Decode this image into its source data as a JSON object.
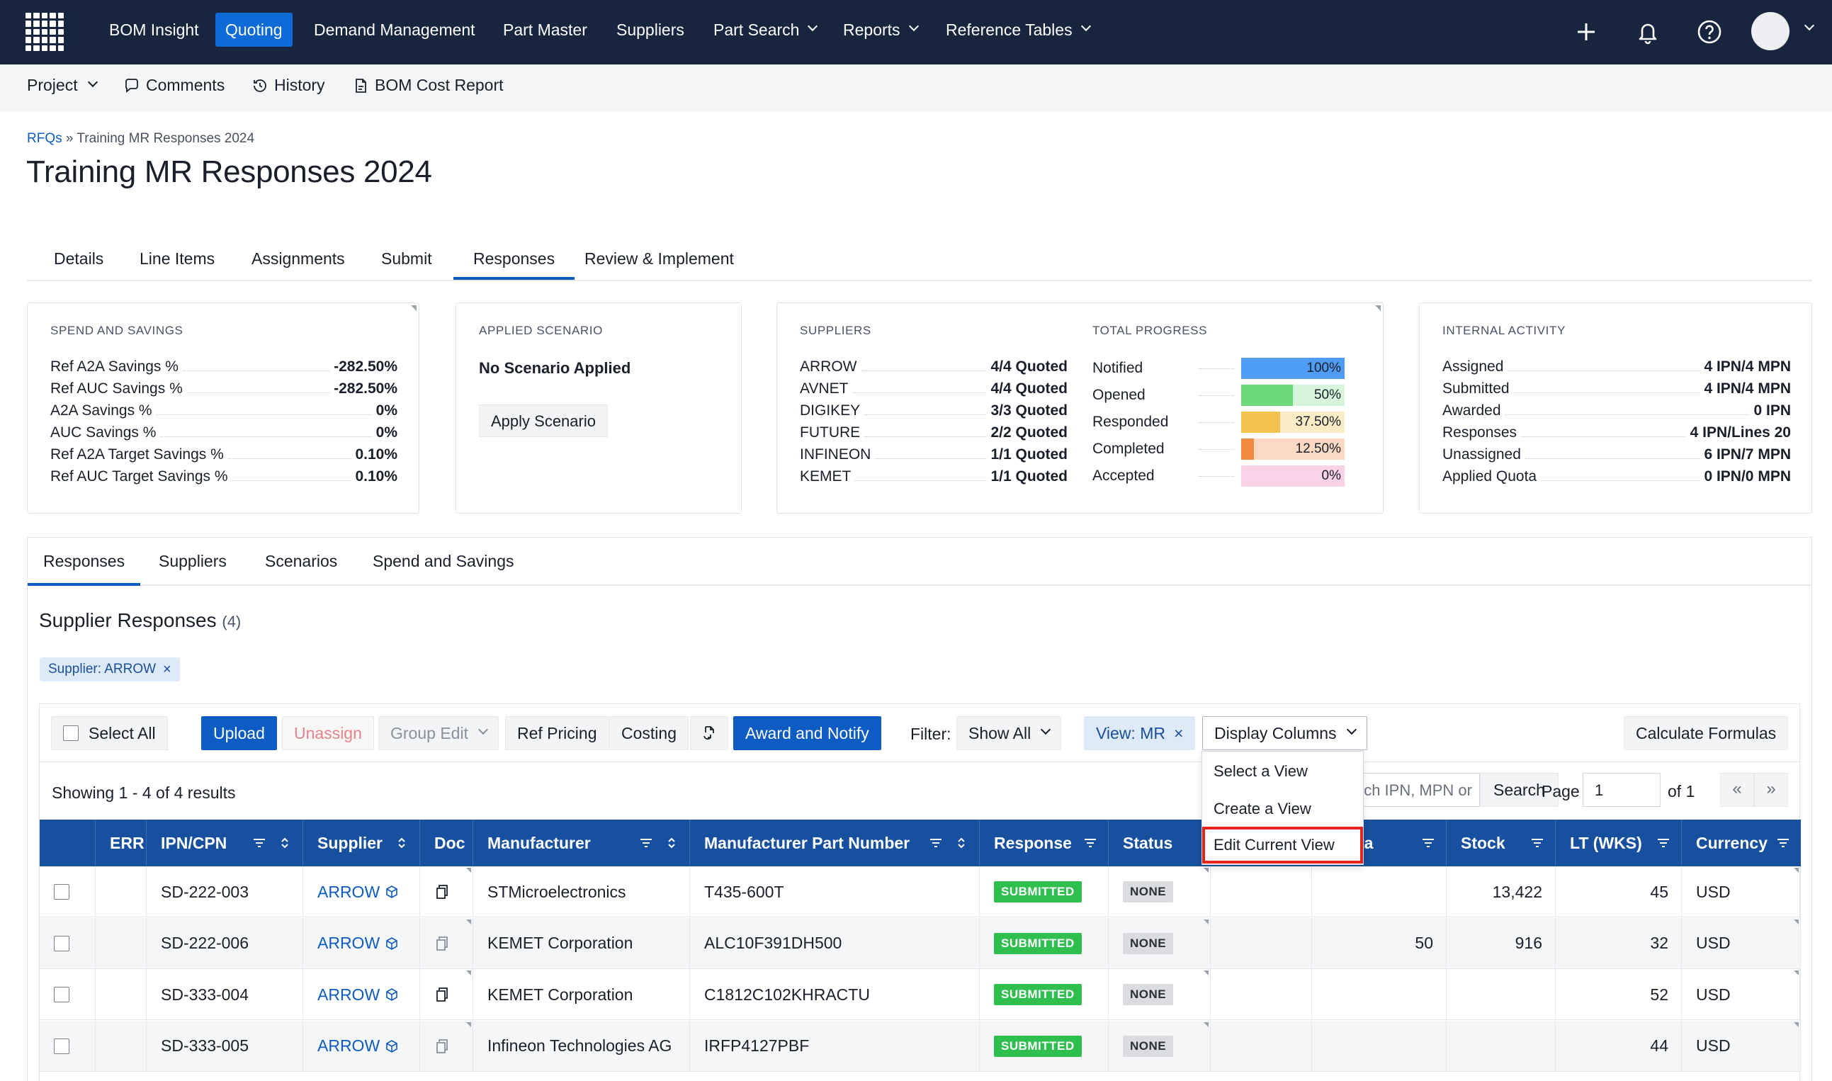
{
  "topnav": {
    "items": [
      {
        "label": "BOM Insight"
      },
      {
        "label": "Quoting"
      },
      {
        "label": "Demand Management"
      },
      {
        "label": "Part Master"
      },
      {
        "label": "Suppliers"
      },
      {
        "label": "Part Search"
      },
      {
        "label": "Reports"
      },
      {
        "label": "Reference Tables"
      }
    ],
    "icons": [
      "plus-icon",
      "bell-icon",
      "help-icon",
      "avatar"
    ]
  },
  "subbar": {
    "project": "Project",
    "comments": "Comments",
    "history": "History",
    "bom_cost_report": "BOM Cost Report"
  },
  "breadcrumb": {
    "root": "RFQs",
    "sep": "»",
    "current": "Training MR Responses 2024"
  },
  "page_title": "Training MR Responses 2024",
  "main_tabs": [
    "Details",
    "Line Items",
    "Assignments",
    "Submit",
    "Responses",
    "Review & Implement"
  ],
  "spend": {
    "heading": "SPEND AND SAVINGS",
    "rows": [
      {
        "k": "Ref A2A Savings %",
        "v": "-282.50%"
      },
      {
        "k": "Ref AUC Savings %",
        "v": "-282.50%"
      },
      {
        "k": "A2A Savings %",
        "v": "0%"
      },
      {
        "k": "AUC Savings %",
        "v": "0%"
      },
      {
        "k": "Ref A2A Target Savings %",
        "v": "0.10%"
      },
      {
        "k": "Ref AUC Target Savings %",
        "v": "0.10%"
      }
    ]
  },
  "scenario": {
    "heading": "APPLIED SCENARIO",
    "status": "No Scenario Applied",
    "button": "Apply Scenario"
  },
  "suppliers": {
    "heading": "SUPPLIERS",
    "rows": [
      {
        "k": "ARROW",
        "v": "4/4 Quoted"
      },
      {
        "k": "AVNET",
        "v": "4/4 Quoted"
      },
      {
        "k": "DIGIKEY",
        "v": "3/3 Quoted"
      },
      {
        "k": "FUTURE",
        "v": "2/2 Quoted"
      },
      {
        "k": "INFINEON",
        "v": "1/1 Quoted"
      },
      {
        "k": "KEMET",
        "v": "1/1 Quoted"
      }
    ]
  },
  "progress": {
    "heading": "TOTAL PROGRESS",
    "rows": [
      {
        "k": "Notified",
        "v": "100%",
        "fraction": 1.0,
        "color": "#4e9cf5",
        "bg": "#d3e6fc"
      },
      {
        "k": "Opened",
        "v": "50%",
        "fraction": 0.5,
        "color": "#6dd97c",
        "bg": "#d6f5da"
      },
      {
        "k": "Responded",
        "v": "37.50%",
        "fraction": 0.375,
        "color": "#f2c24f",
        "bg": "#fbecc6"
      },
      {
        "k": "Completed",
        "v": "12.50%",
        "fraction": 0.125,
        "color": "#f08a3e",
        "bg": "#fbd9c2"
      },
      {
        "k": "Accepted",
        "v": "0%",
        "fraction": 0.0,
        "color": "#f7a6cf",
        "bg": "#fbd3e8"
      }
    ]
  },
  "internal": {
    "heading": "INTERNAL ACTIVITY",
    "rows": [
      {
        "k": "Assigned",
        "v": "4 IPN/4 MPN"
      },
      {
        "k": "Submitted",
        "v": "4 IPN/4 MPN"
      },
      {
        "k": "Awarded",
        "v": "0 IPN"
      },
      {
        "k": "Responses",
        "v": "4 IPN/Lines 20"
      },
      {
        "k": "Unassigned",
        "v": "6 IPN/7 MPN"
      },
      {
        "k": "Applied Quota",
        "v": "0 IPN/0 MPN"
      }
    ]
  },
  "section_tabs": [
    "Responses",
    "Suppliers",
    "Scenarios",
    "Spend and Savings"
  ],
  "responses": {
    "title": "Supplier Responses",
    "count": "(4)",
    "chip": "Supplier: ARROW"
  },
  "toolbar": {
    "select_all": "Select All",
    "upload": "Upload",
    "unassign": "Unassign",
    "group_edit": "Group Edit",
    "ref_pricing": "Ref Pricing",
    "costing": "Costing",
    "award_notify": "Award and Notify",
    "filter_label": "Filter:",
    "filter_value": "Show All",
    "view": "View: MR",
    "display_columns": "Display Columns",
    "calculate": "Calculate Formulas"
  },
  "dropdown": {
    "items": [
      "Select a View",
      "Create a View",
      "Edit Current View"
    ]
  },
  "list": {
    "showing": "Showing 1 - 4 of 4 results",
    "search_placeholder": "Search IPN, MPN or",
    "search_btn": "Search",
    "page_label": "Page",
    "page_value": "1",
    "of_label": "of 1",
    "prev": "«",
    "next": "»"
  },
  "table": {
    "headers": [
      "ERR",
      "IPN/CPN",
      "Supplier",
      "Doc",
      "Manufacturer",
      "Manufacturer Part Number",
      "Response",
      "Status",
      "",
      "Quota",
      "Stock",
      "LT (WKS)",
      "Currency"
    ],
    "rows": [
      {
        "ipn": "SD-222-003",
        "supplier": "ARROW",
        "manufacturer": "STMicroelectronics",
        "mpn": "T435-600T",
        "response": "SUBMITTED",
        "status": "NONE",
        "quota": "",
        "stock": "13,422",
        "lt": "45",
        "currency": "USD"
      },
      {
        "ipn": "SD-222-006",
        "supplier": "ARROW",
        "manufacturer": "KEMET Corporation",
        "mpn": "ALC10F391DH500",
        "response": "SUBMITTED",
        "status": "NONE",
        "quota": "50",
        "stock": "916",
        "lt": "32",
        "currency": "USD"
      },
      {
        "ipn": "SD-333-004",
        "supplier": "ARROW",
        "manufacturer": "KEMET Corporation",
        "mpn": "C1812C102KHRACTU",
        "response": "SUBMITTED",
        "status": "NONE",
        "quota": "",
        "stock": "",
        "lt": "52",
        "currency": "USD"
      },
      {
        "ipn": "SD-333-005",
        "supplier": "ARROW",
        "manufacturer": "Infineon Technologies AG",
        "mpn": "IRFP4127PBF",
        "response": "SUBMITTED",
        "status": "NONE",
        "quota": "",
        "stock": "",
        "lt": "44",
        "currency": "USD"
      }
    ]
  }
}
